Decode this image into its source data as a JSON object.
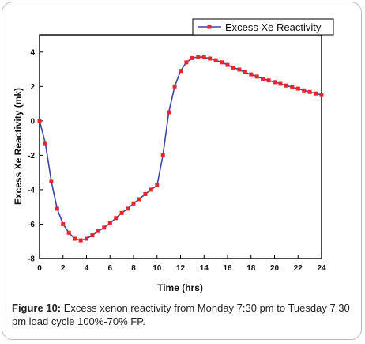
{
  "figure": {
    "caption_label": "Figure 10:",
    "caption_text": " Excess xenon reactivity from Monday 7:30 pm to Tuesday 7:30 pm load cycle 100%-70% FP."
  },
  "chart_data": {
    "type": "line",
    "title": "",
    "xlabel": "Time (hrs)",
    "ylabel": "Excess Xe Reactivity (mk)",
    "xlim": [
      0,
      24
    ],
    "ylim": [
      -8,
      5
    ],
    "xticks": [
      0,
      2,
      4,
      6,
      8,
      10,
      12,
      14,
      16,
      18,
      20,
      22,
      24
    ],
    "xtick_labels": [
      "0",
      "2",
      "4",
      "6",
      "8",
      "10",
      "12",
      "14",
      "16",
      "18",
      "20",
      "22",
      "24"
    ],
    "yticks": [
      -8,
      -6,
      -4,
      -2,
      0,
      2,
      4
    ],
    "ytick_labels": [
      "-8",
      "-6",
      "-4",
      "-2",
      "0",
      "2",
      "4"
    ],
    "grid": false,
    "legend_position": "top-right",
    "line_color": "#3b45a4",
    "marker_color": "#e8262b",
    "series": [
      {
        "name": "Excess Xe Reactivity",
        "x": [
          0,
          0.5,
          1,
          1.5,
          2,
          2.5,
          3,
          3.5,
          4,
          4.5,
          5,
          5.5,
          6,
          6.5,
          7,
          7.5,
          8,
          8.5,
          9,
          9.5,
          10,
          10.5,
          11,
          11.5,
          12,
          12.5,
          13,
          13.5,
          14,
          14.5,
          15,
          15.5,
          16,
          16.5,
          17,
          17.5,
          18,
          18.5,
          19,
          19.5,
          20,
          20.5,
          21,
          21.5,
          22,
          22.5,
          23,
          23.5,
          24
        ],
        "y": [
          0,
          -1.3,
          -3.5,
          -5.1,
          -6.0,
          -6.5,
          -6.85,
          -6.95,
          -6.85,
          -6.65,
          -6.4,
          -6.2,
          -5.95,
          -5.65,
          -5.35,
          -5.1,
          -4.8,
          -4.55,
          -4.25,
          -4.0,
          -3.75,
          -2.0,
          0.5,
          2.0,
          2.9,
          3.4,
          3.65,
          3.72,
          3.7,
          3.62,
          3.52,
          3.4,
          3.25,
          3.1,
          2.98,
          2.82,
          2.7,
          2.57,
          2.45,
          2.35,
          2.25,
          2.15,
          2.05,
          1.95,
          1.87,
          1.77,
          1.68,
          1.59,
          1.5
        ]
      }
    ]
  }
}
